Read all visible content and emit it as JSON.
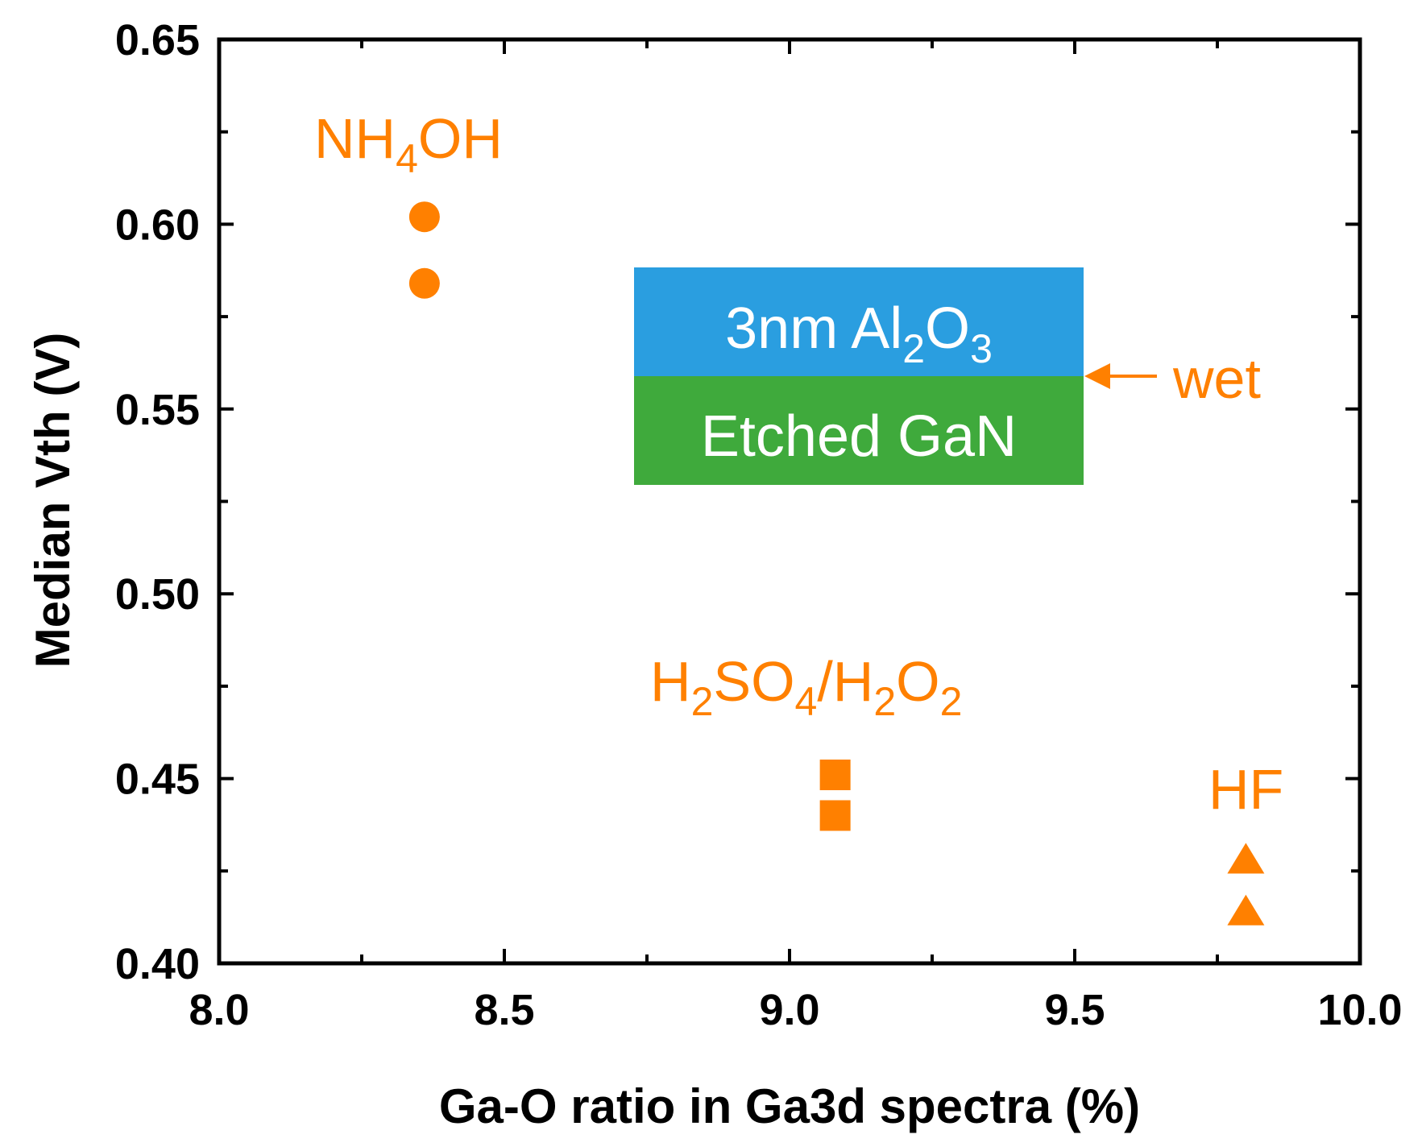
{
  "chart_data": {
    "type": "scatter",
    "xlabel": "Ga-O ratio in Ga3d spectra (%)",
    "ylabel": "Median Vth (V)",
    "xlim": [
      8.0,
      10.0
    ],
    "ylim": [
      0.4,
      0.65
    ],
    "x_ticks": [
      "8.0",
      "8.5",
      "9.0",
      "9.5",
      "10.0"
    ],
    "y_ticks": [
      "0.40",
      "0.45",
      "0.50",
      "0.55",
      "0.60",
      "0.65"
    ],
    "grid": false,
    "series": [
      {
        "name": "NH4OH",
        "marker": "circle",
        "color": "#ff8000",
        "points": [
          {
            "x": 8.36,
            "y": 0.602
          },
          {
            "x": 8.36,
            "y": 0.584
          }
        ]
      },
      {
        "name": "H2SO4/H2O2",
        "marker": "square",
        "color": "#ff8000",
        "points": [
          {
            "x": 9.08,
            "y": 0.451
          },
          {
            "x": 9.08,
            "y": 0.44
          }
        ]
      },
      {
        "name": "HF",
        "marker": "triangle",
        "color": "#ff8000",
        "points": [
          {
            "x": 9.8,
            "y": 0.428
          },
          {
            "x": 9.8,
            "y": 0.414
          }
        ]
      }
    ],
    "annotations": {
      "nh4oh": {
        "main": "NH",
        "sub": "4",
        "tail": "OH"
      },
      "h2so4": {
        "p1": "H",
        "s1": "2",
        "p2": "SO",
        "s2": "4",
        "p3": "/H",
        "s3": "2",
        "p4": "O",
        "s4": "2"
      },
      "hf": "HF",
      "wet": "wet"
    },
    "stack": {
      "top": {
        "pre": "3nm Al",
        "s1": "2",
        "mid": "O",
        "s2": "3",
        "color": "#2a9ee0"
      },
      "bottom": {
        "label": "Etched GaN",
        "color": "#3faa3c"
      }
    },
    "accent_color": "#ff8000"
  }
}
